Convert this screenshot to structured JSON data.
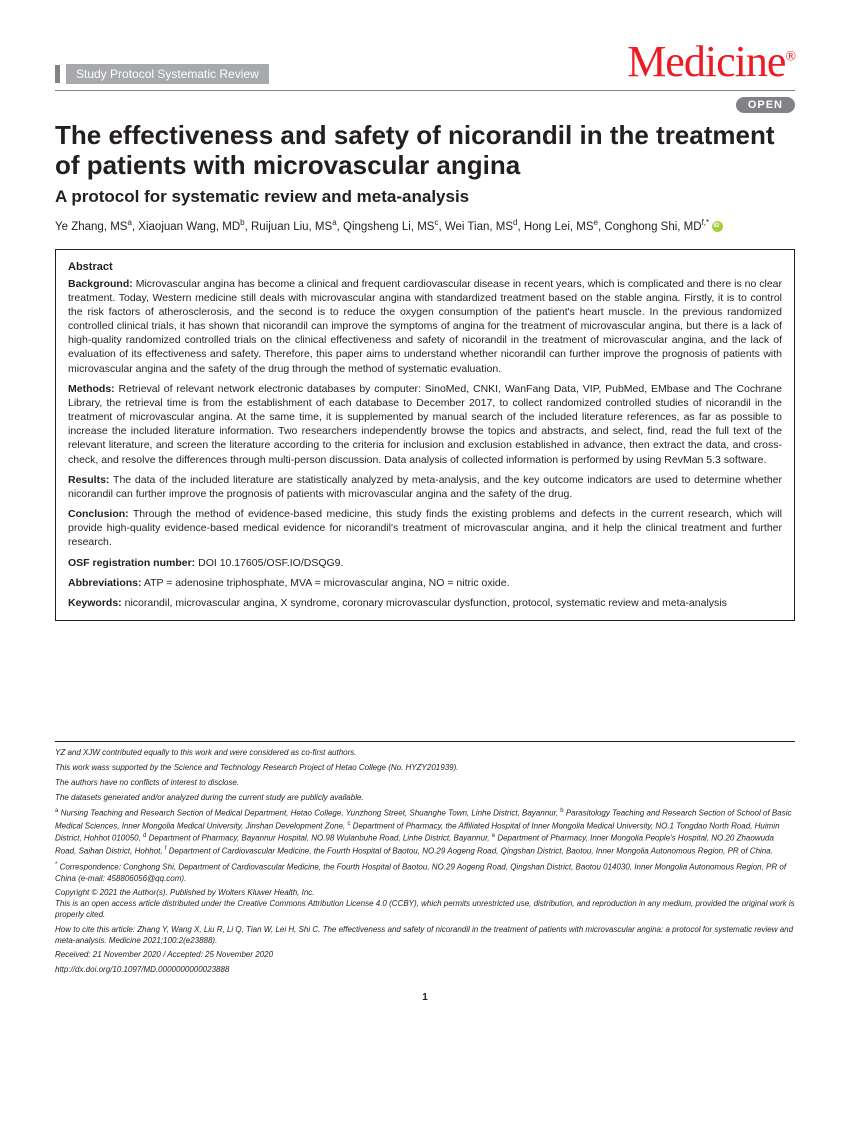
{
  "header": {
    "category": "Study Protocol Systematic Review",
    "journal": "Medicine",
    "open_label": "OPEN"
  },
  "title": "The effectiveness and safety of nicorandil in the treatment of patients with microvascular angina",
  "subtitle": "A protocol for systematic review and meta-analysis",
  "authors_html": "Ye Zhang, MS<sup>a</sup>, Xiaojuan Wang, MD<sup>b</sup>, Ruijuan Liu, MS<sup>a</sup>, Qingsheng Li, MS<sup>c</sup>, Wei Tian, MS<sup>d</sup>, Hong Lei, MS<sup>e</sup>, Conghong Shi, MD<sup>f,*</sup>",
  "abstract": {
    "heading": "Abstract",
    "background_label": "Background:",
    "background": "Microvascular angina has become a clinical and frequent cardiovascular disease in recent years, which is complicated and there is no clear treatment. Today, Western medicine still deals with microvascular angina with standardized treatment based on the stable angina. Firstly, it is to control the risk factors of atherosclerosis, and the second is to reduce the oxygen consumption of the patient's heart muscle. In the previous randomized controlled clinical trials, it has shown that nicorandil can improve the symptoms of angina for the treatment of microvascular angina, but there is a lack of high-quality randomized controlled trials on the clinical effectiveness and safety of nicorandil in the treatment of microvascular angina, and the lack of evaluation of its effectiveness and safety. Therefore, this paper aims to understand whether nicorandil can further improve the prognosis of patients with microvascular angina and the safety of the drug through the method of systematic evaluation.",
    "methods_label": "Methods:",
    "methods": "Retrieval of relevant network electronic databases by computer: SinoMed, CNKI, WanFang Data, VIP, PubMed, EMbase and The Cochrane Library, the retrieval time is from the establishment of each database to December 2017, to collect randomized controlled studies of nicorandil in the treatment of microvascular angina. At the same time, it is supplemented by manual search of the included literature references, as far as possible to increase the included literature information. Two researchers independently browse the topics and abstracts, and select, find, read the full text of the relevant literature, and screen the literature according to the criteria for inclusion and exclusion established in advance, then extract the data, and cross-check, and resolve the differences through multi-person discussion. Data analysis of collected information is performed by using RevMan 5.3 software.",
    "results_label": "Results:",
    "results": "The data of the included literature are statistically analyzed by meta-analysis, and the key outcome indicators are used to determine whether nicorandil can further improve the prognosis of patients with microvascular angina and the safety of the drug.",
    "conclusion_label": "Conclusion:",
    "conclusion": "Through the method of evidence-based medicine, this study finds the existing problems and defects in the current research, which will provide high-quality evidence-based medical evidence for nicorandil's treatment of microvascular angina, and it help the clinical treatment and further research.",
    "osf_label": "OSF registration number:",
    "osf": "DOI 10.17605/OSF.IO/DSQG9.",
    "abbr_label": "Abbreviations:",
    "abbr": "ATP = adenosine triphosphate, MVA = microvascular angina, NO = nitric oxide.",
    "keywords_label": "Keywords:",
    "keywords": "nicorandil, microvascular angina, X syndrome, coronary microvascular dysfunction, protocol, systematic review and meta-analysis"
  },
  "footnotes": {
    "n1": "YZ and XJW contributed equally to this work and were considered as co-first authors.",
    "n2": "This work wass supported by the Science and Technology Research Project of Hetao College (No. HYZY201939).",
    "n3": "The authors have no conflicts of interest to disclose.",
    "n4": "The datasets generated and/or analyzed during the current study are publicly available.",
    "aff": "<sup>a</sup> Nursing Teaching and Research Section of Medical Department, Hetao College, Yunzhong Street, Shuanghe Town, Linhe District, Bayannur, <sup>b</sup> Parasitology Teaching and Research Section of School of Basic Medical Sciences, Inner Mongolia Medical University, Jinshan Development Zone, <sup>c</sup> Department of Pharmacy, the Affiliated Hospital of Inner Mongolia Medical University, NO.1 Tongdao North Road, Huimin District, Hohhot 010050, <sup>d</sup> Department of Pharmacy, Bayannur Hospital, NO.98 Wulanbuhe Road, Linhe District, Bayannur, <sup>e</sup> Department of Pharmacy, Inner Mongolia People's Hospital, NO.20 Zhaowuda Road, Saihan District, Hohhot, <sup>f</sup> Department of Cardiovascular Medicine, the Fourth Hospital of Baotou, NO.29 Aogeng Road, Qingshan District, Baotou, Inner Mongolia Autonomous Region, PR of China.",
    "corr": "<sup>*</sup> Correspondence: Conghong Shi, Department of Cardiovascular Medicine, the Fourth Hospital of Baotou, NO.29 Aogeng Road, Qingshan District, Baotou 014030, Inner Mongolia Autonomous Region, PR of China (e-mail: 458806056@qq.com).",
    "copy1": "Copyright © 2021 the Author(s). Published by Wolters Kluwer Health, Inc.",
    "copy2": "This is an open access article distributed under the Creative Commons Attribution License 4.0 (CCBY), which permits unrestricted use, distribution, and reproduction in any medium, provided the original work is properly cited.",
    "cite": "How to cite this article: Zhang Y, Wang X, Liu R, Li Q, Tian W, Lei H, Shi C. The effectiveness and safety of nicorandil in the treatment of patients with microvascular angina: a protocol for systematic review and meta-analysis. Medicine 2021;100:2(e23888).",
    "dates": "Received: 21 November 2020 / Accepted: 25 November 2020",
    "doi": "http://dx.doi.org/10.1097/MD.0000000000023888"
  },
  "page": "1"
}
